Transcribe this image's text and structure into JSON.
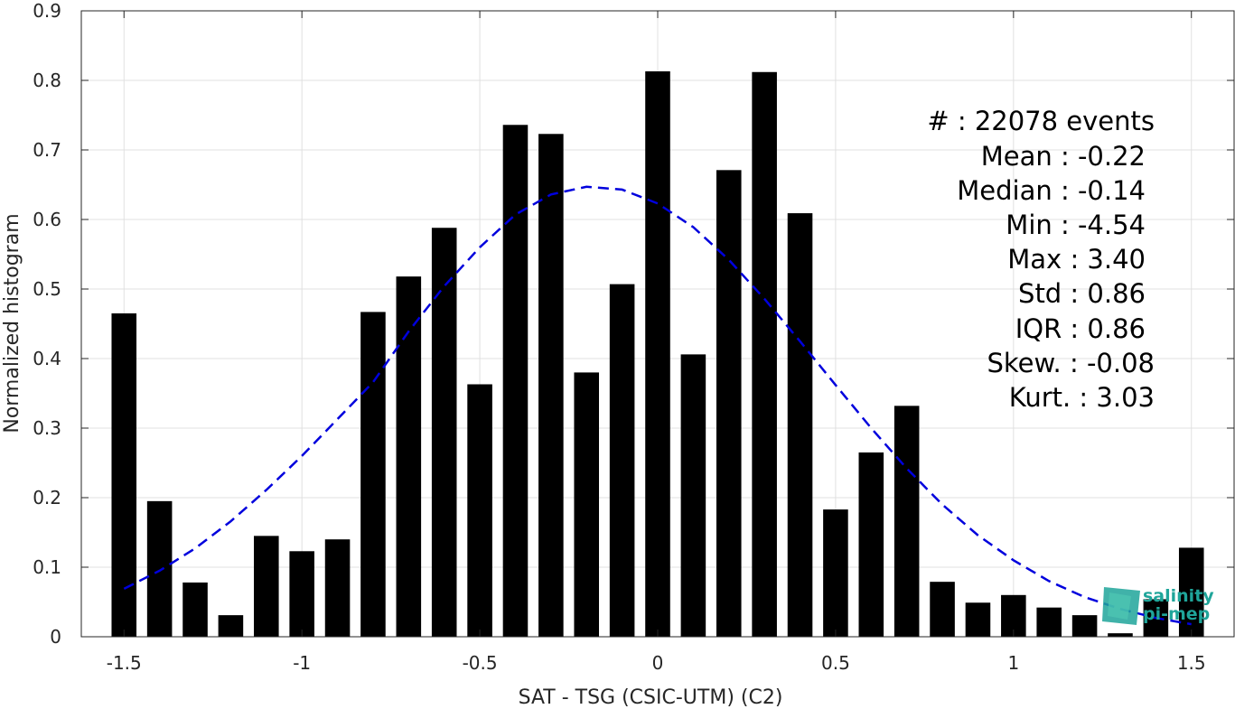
{
  "chart_data": {
    "type": "bar",
    "xlabel": "SAT - TSG (CSIC-UTM) (C2)",
    "ylabel": "Normalized histogram",
    "xlim": [
      -1.62,
      1.62
    ],
    "ylim": [
      0,
      0.9
    ],
    "xticks": [
      -1.5,
      -1,
      -0.5,
      0,
      0.5,
      1,
      1.5
    ],
    "xtick_labels": [
      "-1.5",
      "-1",
      "-0.5",
      "0",
      "0.5",
      "1",
      "1.5"
    ],
    "yticks": [
      0,
      0.1,
      0.2,
      0.3,
      0.4,
      0.5,
      0.6,
      0.7,
      0.8,
      0.9
    ],
    "ytick_labels": [
      "0",
      "0.1",
      "0.2",
      "0.3",
      "0.4",
      "0.5",
      "0.6",
      "0.7",
      "0.8",
      "0.9"
    ],
    "grid": true,
    "bar_color": "#000000",
    "bins": [
      -1.5,
      -1.4,
      -1.3,
      -1.2,
      -1.1,
      -1.0,
      -0.9,
      -0.8,
      -0.7,
      -0.6,
      -0.5,
      -0.4,
      -0.3,
      -0.2,
      -0.1,
      0.0,
      0.1,
      0.2,
      0.3,
      0.4,
      0.5,
      0.6,
      0.7,
      0.8,
      0.9,
      1.0,
      1.1,
      1.2,
      1.3,
      1.4,
      1.5
    ],
    "values": [
      0.465,
      0.195,
      0.078,
      0.031,
      0.145,
      0.123,
      0.14,
      0.467,
      0.518,
      0.588,
      0.363,
      0.736,
      0.723,
      0.38,
      0.507,
      0.813,
      0.406,
      0.671,
      0.812,
      0.609,
      0.183,
      0.265,
      0.332,
      0.079,
      0.049,
      0.06,
      0.042,
      0.031,
      0.005,
      0.054,
      0.128
    ],
    "fit": {
      "style": "dashed",
      "color": "#0000dd",
      "x": [
        -1.5,
        -1.4,
        -1.3,
        -1.2,
        -1.1,
        -1.0,
        -0.9,
        -0.8,
        -0.7,
        -0.6,
        -0.5,
        -0.4,
        -0.3,
        -0.2,
        -0.1,
        0.0,
        0.1,
        0.2,
        0.3,
        0.4,
        0.5,
        0.6,
        0.7,
        0.8,
        0.9,
        1.0,
        1.1,
        1.2,
        1.3,
        1.4,
        1.5
      ],
      "y": [
        0.069,
        0.095,
        0.127,
        0.166,
        0.211,
        0.26,
        0.313,
        0.366,
        0.439,
        0.504,
        0.56,
        0.607,
        0.636,
        0.647,
        0.643,
        0.623,
        0.589,
        0.542,
        0.486,
        0.425,
        0.362,
        0.3,
        0.242,
        0.19,
        0.146,
        0.11,
        0.08,
        0.057,
        0.04,
        0.027,
        0.018
      ]
    }
  },
  "stats": [
    {
      "label": "#  : 22078 events"
    },
    {
      "label": "Mean : -0.22"
    },
    {
      "label": "Median : -0.14"
    },
    {
      "label": "Min : -4.54"
    },
    {
      "label": "Max : 3.40"
    },
    {
      "label": "Std : 0.86"
    },
    {
      "label": "IQR : 0.86"
    },
    {
      "label": "Skew. : -0.08"
    },
    {
      "label": "Kurt. : 3.03"
    }
  ],
  "logo": {
    "line1": "salinity",
    "line2": "pi-mep",
    "colors": [
      "#1fa59a",
      "#2c5e7a",
      "#4fc7b4"
    ]
  }
}
